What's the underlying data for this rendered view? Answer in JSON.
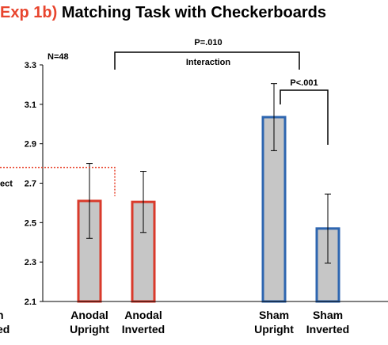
{
  "title": {
    "prefix": "Exp 1b)",
    "main": "Matching Task with Checkerboards"
  },
  "colors": {
    "accent": "#e8452e",
    "anodal": "#d93a2b",
    "sham": "#2e66b0",
    "bar_fill": "#c6c6c6",
    "dotted": "#e8452e"
  },
  "chart_data": {
    "type": "bar",
    "title": "Matching Task with Checkerboards",
    "categories": [
      {
        "line1": "Anodal",
        "line2": "Upright",
        "group": "anodal"
      },
      {
        "line1": "Anodal",
        "line2": "Inverted",
        "group": "anodal"
      },
      {
        "line1": "Sham",
        "line2": "Upright",
        "group": "sham"
      },
      {
        "line1": "Sham",
        "line2": "Inverted",
        "group": "sham"
      }
    ],
    "values": [
      2.61,
      2.605,
      3.035,
      2.47
    ],
    "errors": [
      0.19,
      0.155,
      0.17,
      0.175
    ],
    "ylim": [
      2.1,
      3.3
    ],
    "yticks": [
      "2.1",
      "2.3",
      "2.5",
      "2.7",
      "2.9",
      "3.1",
      "3.3"
    ],
    "dotted_reference": 2.78,
    "annotations": {
      "n": "N=48",
      "interaction_p": "P=.010",
      "interaction_label": "Interaction",
      "sham_p": "P<.001"
    },
    "cut_off_left": {
      "tick_fragment": "ect",
      "cat_line1": "n",
      "cat_line2": "ed"
    }
  }
}
